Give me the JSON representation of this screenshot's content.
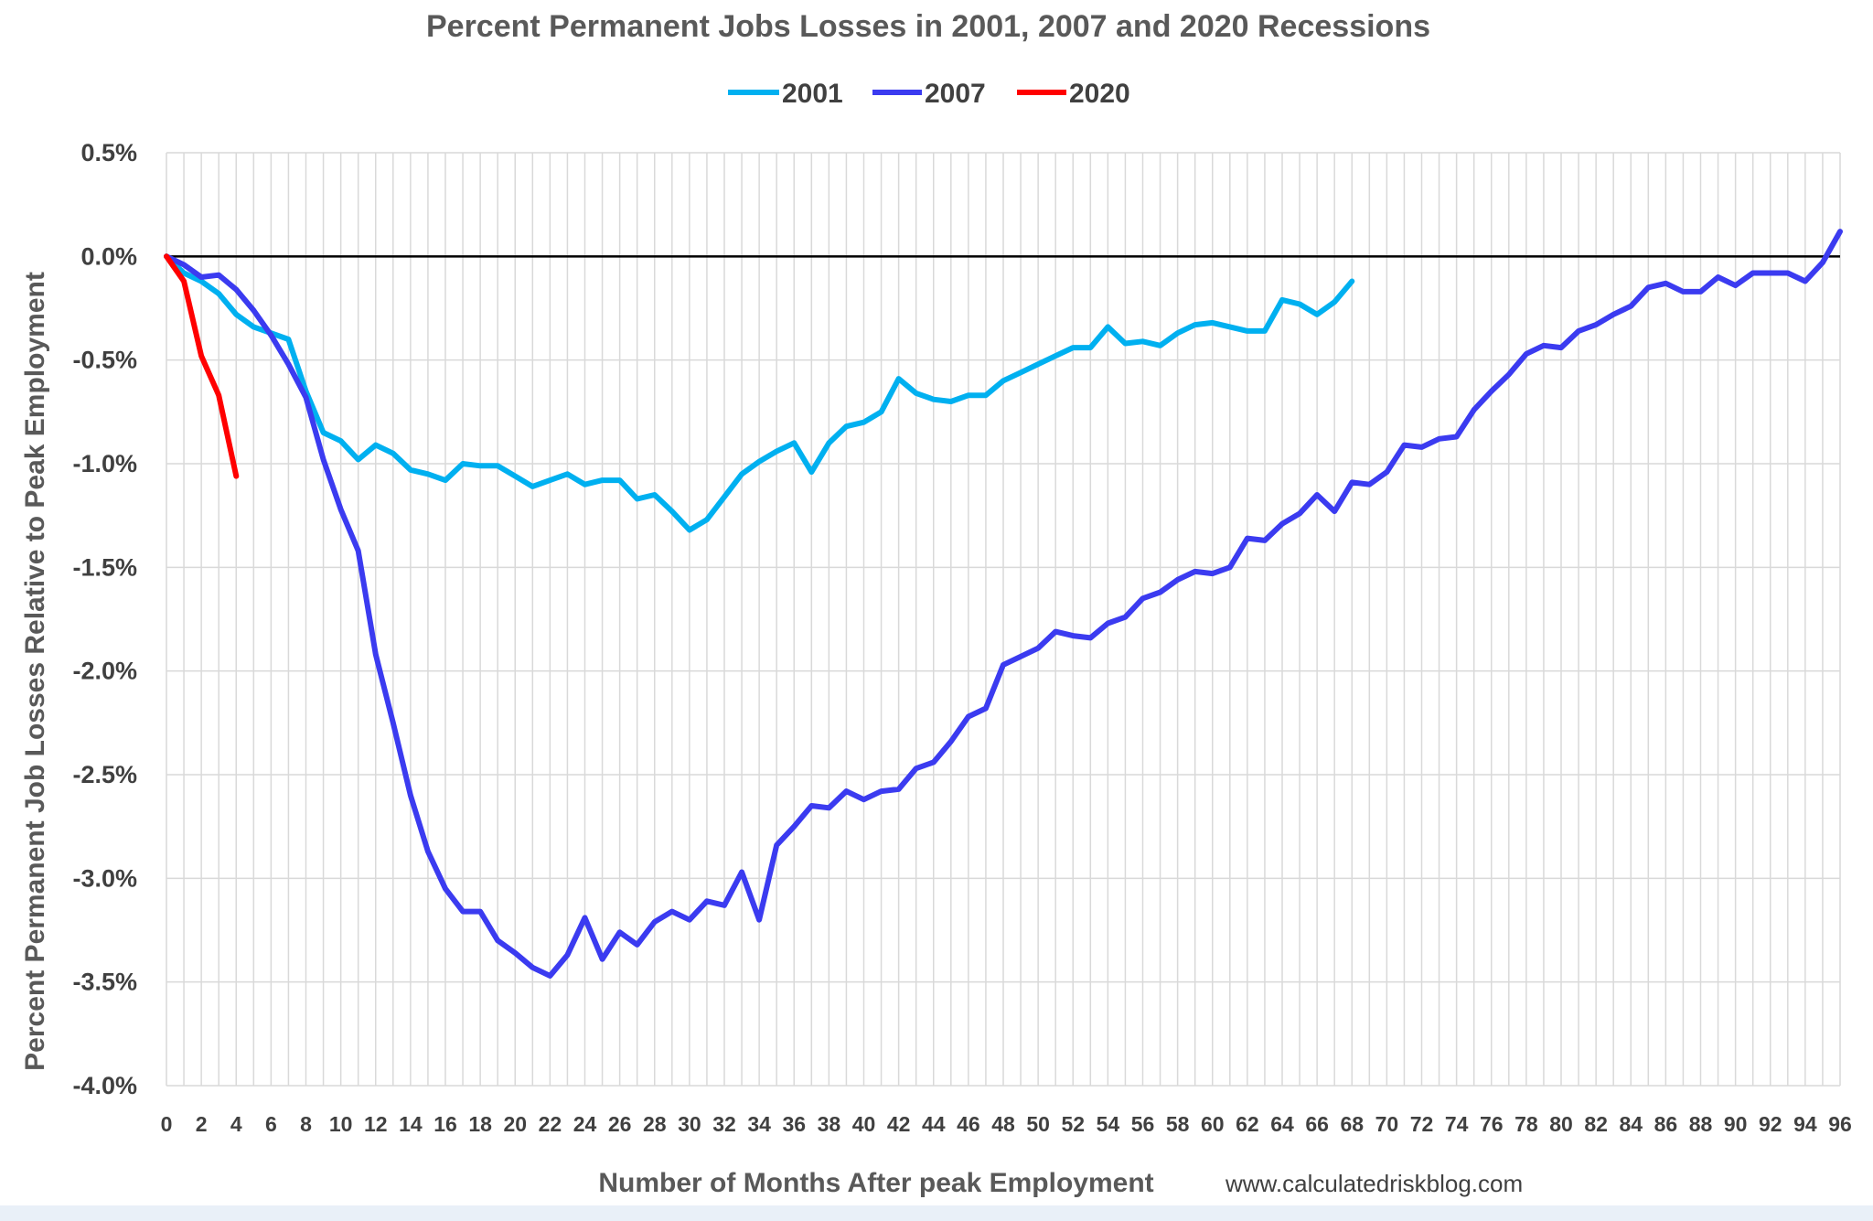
{
  "chart_data": {
    "type": "line",
    "title": "Percent Permanent Jobs Losses in 2001, 2007 and 2020 Recessions",
    "xlabel": "Number of Months After peak Employment",
    "ylabel": "Percent Permanent Job Losses Relative to Peak Employment",
    "source": "www.calculatedriskblog.com",
    "legend_position": "top",
    "grid": true,
    "xlim": [
      0,
      96
    ],
    "ylim": [
      -4.0,
      0.5
    ],
    "ytick_step": 0.5,
    "ytick_labels": [
      "0.5%",
      "0.0%",
      "-0.5%",
      "-1.0%",
      "-1.5%",
      "-2.0%",
      "-2.5%",
      "-3.0%",
      "-3.5%",
      "-4.0%"
    ],
    "xtick_labels": [
      "0",
      "2",
      "4",
      "6",
      "8",
      "10",
      "12",
      "14",
      "16",
      "18",
      "20",
      "22",
      "24",
      "26",
      "28",
      "30",
      "32",
      "34",
      "36",
      "38",
      "40",
      "42",
      "44",
      "46",
      "48",
      "50",
      "52",
      "54",
      "56",
      "58",
      "60",
      "62",
      "64",
      "66",
      "68",
      "70",
      "72",
      "74",
      "76",
      "78",
      "80",
      "82",
      "84",
      "86",
      "88",
      "90",
      "92",
      "94",
      "96"
    ],
    "series": [
      {
        "name": "2001",
        "color": "#00b0f0",
        "values": [
          0.0,
          -0.08,
          -0.12,
          -0.18,
          -0.28,
          -0.34,
          -0.37,
          -0.4,
          -0.65,
          -0.85,
          -0.89,
          -0.98,
          -0.91,
          -0.95,
          -1.03,
          -1.05,
          -1.08,
          -1.0,
          -1.01,
          -1.01,
          -1.06,
          -1.11,
          -1.08,
          -1.05,
          -1.1,
          -1.08,
          -1.08,
          -1.17,
          -1.15,
          -1.23,
          -1.32,
          -1.27,
          -1.16,
          -1.05,
          -0.99,
          -0.94,
          -0.9,
          -1.04,
          -0.9,
          -0.82,
          -0.8,
          -0.75,
          -0.59,
          -0.66,
          -0.69,
          -0.7,
          -0.67,
          -0.67,
          -0.6,
          -0.56,
          -0.52,
          -0.48,
          -0.44,
          -0.44,
          -0.34,
          -0.42,
          -0.41,
          -0.43,
          -0.37,
          -0.33,
          -0.32,
          -0.34,
          -0.36,
          -0.36,
          -0.21,
          -0.23,
          -0.28,
          -0.22,
          -0.12
        ]
      },
      {
        "name": "2007",
        "color": "#3b3bf0",
        "values": [
          0.0,
          -0.04,
          -0.1,
          -0.09,
          -0.16,
          -0.26,
          -0.38,
          -0.52,
          -0.68,
          -0.98,
          -1.22,
          -1.42,
          -1.92,
          -2.25,
          -2.6,
          -2.87,
          -3.05,
          -3.16,
          -3.16,
          -3.3,
          -3.36,
          -3.43,
          -3.47,
          -3.37,
          -3.19,
          -3.39,
          -3.26,
          -3.32,
          -3.21,
          -3.16,
          -3.2,
          -3.11,
          -3.13,
          -2.97,
          -3.2,
          -2.84,
          -2.75,
          -2.65,
          -2.66,
          -2.58,
          -2.62,
          -2.58,
          -2.57,
          -2.47,
          -2.44,
          -2.34,
          -2.22,
          -2.18,
          -1.97,
          -1.93,
          -1.89,
          -1.81,
          -1.83,
          -1.84,
          -1.77,
          -1.74,
          -1.65,
          -1.62,
          -1.56,
          -1.52,
          -1.53,
          -1.5,
          -1.36,
          -1.37,
          -1.29,
          -1.24,
          -1.15,
          -1.23,
          -1.09,
          -1.1,
          -1.04,
          -0.91,
          -0.92,
          -0.88,
          -0.87,
          -0.74,
          -0.65,
          -0.57,
          -0.47,
          -0.43,
          -0.44,
          -0.36,
          -0.33,
          -0.28,
          -0.24,
          -0.15,
          -0.13,
          -0.17,
          -0.17,
          -0.1,
          -0.14,
          -0.08,
          -0.08,
          -0.08,
          -0.12,
          -0.03,
          0.12
        ]
      },
      {
        "name": "2020",
        "color": "#ff0000",
        "values": [
          0.0,
          -0.12,
          -0.48,
          -0.67,
          -1.06
        ]
      }
    ]
  }
}
